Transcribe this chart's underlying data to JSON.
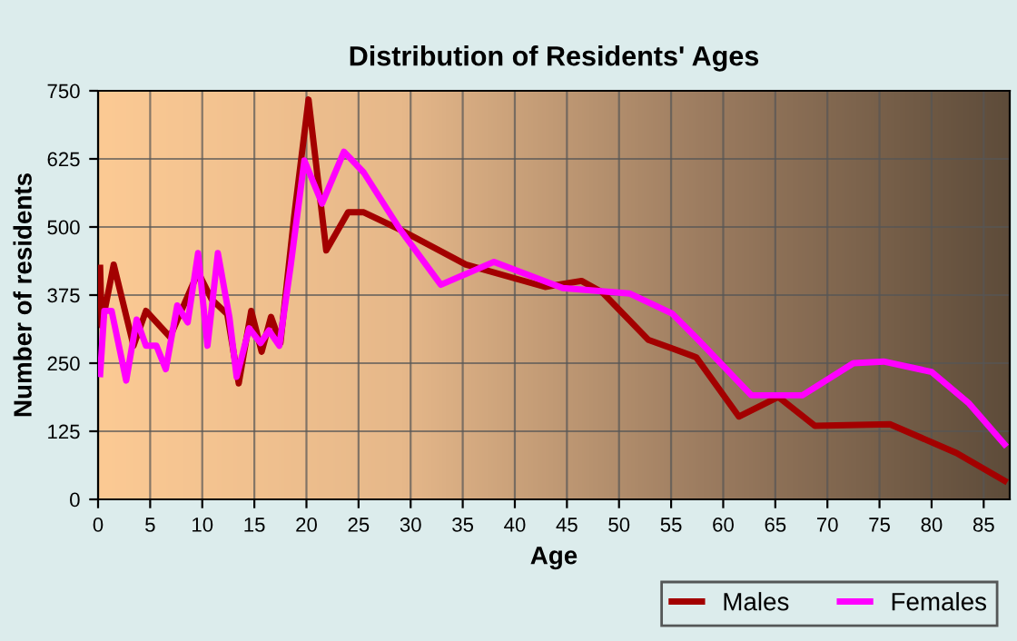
{
  "chart_data": {
    "type": "line",
    "title": "Distribution of Residents' Ages",
    "xlabel": "Age",
    "ylabel": "Number of residents",
    "xlim": [
      0,
      87.5
    ],
    "xticks": [
      0,
      5,
      10,
      15,
      20,
      25,
      30,
      35,
      40,
      45,
      50,
      55,
      60,
      65,
      70,
      75,
      80,
      85
    ],
    "ylim": [
      0,
      750
    ],
    "yticks": [
      0,
      125,
      250,
      375,
      500,
      625,
      750
    ],
    "grid": true,
    "legend": "bottom right",
    "series": [
      {
        "name": "Males",
        "color": "#a30000",
        "x": [
          0.2,
          0.35,
          1.5,
          3.4,
          4.6,
          6.9,
          9.6,
          10.9,
          12.4,
          13.5,
          14.7,
          15.7,
          16.6,
          17.5,
          18.8,
          20.2,
          21.9,
          24,
          25.5,
          29,
          35.3,
          42.9,
          46.4,
          48.4,
          52.8,
          55.1,
          57.4,
          61.5,
          65.3,
          68.8,
          76,
          82.4,
          87
        ],
        "values": [
          425,
          319,
          431,
          282,
          346,
          298,
          417,
          367,
          340,
          213,
          346,
          271,
          335,
          287,
          516,
          734,
          457,
          527,
          527,
          495,
          431,
          390,
          401,
          380,
          293,
          277,
          261,
          152,
          188,
          135,
          138,
          85,
          34
        ]
      },
      {
        "name": "Females",
        "color": "#ff00ff",
        "x": [
          0.2,
          0.6,
          1.3,
          2.7,
          3.7,
          4.6,
          5.6,
          6.5,
          7.6,
          8.6,
          9.6,
          10.5,
          11.5,
          12.6,
          13.3,
          14.5,
          15.6,
          16.4,
          17.4,
          18.5,
          19.8,
          21.5,
          23.6,
          25.5,
          29,
          32.9,
          38,
          44.6,
          51,
          55.1,
          57.6,
          62.7,
          67.6,
          72.5,
          75.4,
          80,
          83.6,
          87
        ],
        "values": [
          230,
          346,
          346,
          218,
          330,
          282,
          282,
          239,
          356,
          325,
          452,
          282,
          452,
          335,
          225,
          314,
          287,
          310,
          282,
          431,
          622,
          543,
          638,
          600,
          495,
          394,
          436,
          388,
          378,
          341,
          293,
          191,
          191,
          250,
          253,
          234,
          176,
          101
        ]
      }
    ]
  }
}
